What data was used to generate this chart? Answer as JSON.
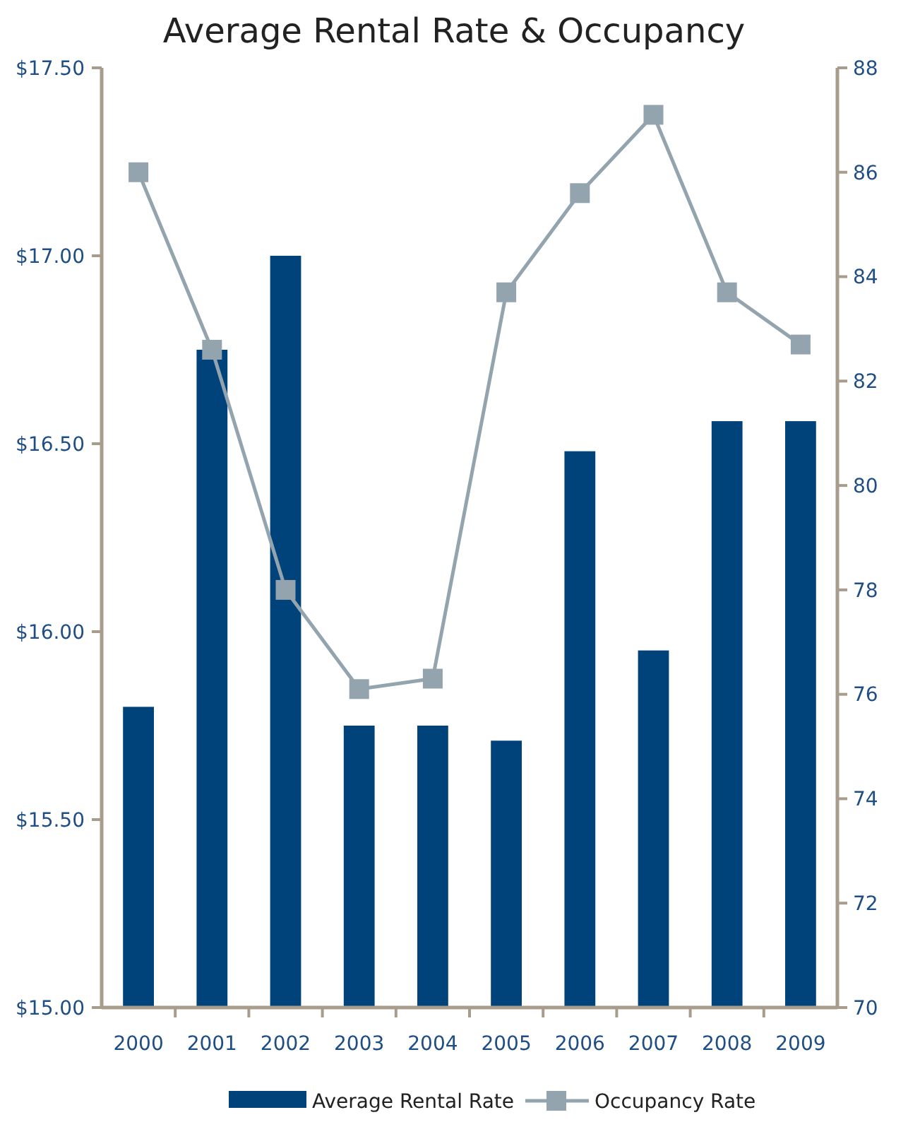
{
  "chart_data": {
    "type": "bar",
    "title": "Average Rental Rate & Occupancy",
    "categories": [
      "2000",
      "2001",
      "2002",
      "2003",
      "2004",
      "2005",
      "2006",
      "2007",
      "2008",
      "2009"
    ],
    "series": [
      {
        "name": "Average Rental Rate",
        "color": "#00427a",
        "values": [
          15.8,
          16.75,
          17.0,
          15.75,
          15.75,
          15.71,
          16.48,
          15.95,
          16.56,
          16.56
        ]
      },
      {
        "name": "Occupancy Rate",
        "type": "line",
        "axis": "y2",
        "color": "#94a4ae",
        "marker": "square",
        "values": [
          86.0,
          82.6,
          78.0,
          76.1,
          76.3,
          83.7,
          85.6,
          87.1,
          83.7,
          82.7
        ]
      }
    ],
    "ylim": [
      15,
      17.5
    ],
    "yticks": [
      {
        "value": 15,
        "label": "$15.00"
      },
      {
        "value": 15.5,
        "label": "$15.50"
      },
      {
        "value": 16,
        "label": "$16.00"
      },
      {
        "value": 16.5,
        "label": "$16.50"
      },
      {
        "value": 17,
        "label": "$17.00"
      },
      {
        "value": 17.5,
        "label": "$17.50"
      }
    ],
    "y2lim": [
      70,
      88
    ],
    "y2ticks": [
      70,
      72,
      74,
      76,
      78,
      80,
      82,
      84,
      86,
      88
    ],
    "grid": false,
    "legend": "bottom"
  }
}
